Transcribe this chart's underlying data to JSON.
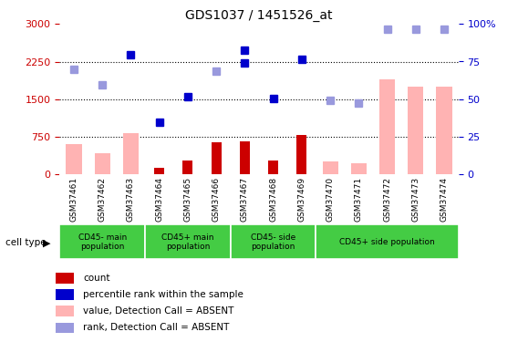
{
  "title": "GDS1037 / 1451526_at",
  "samples": [
    "GSM37461",
    "GSM37462",
    "GSM37463",
    "GSM37464",
    "GSM37465",
    "GSM37466",
    "GSM37467",
    "GSM37468",
    "GSM37469",
    "GSM37470",
    "GSM37471",
    "GSM37472",
    "GSM37473",
    "GSM37474"
  ],
  "count_red": [
    null,
    null,
    null,
    130,
    270,
    640,
    660,
    270,
    780,
    null,
    null,
    null,
    null,
    null
  ],
  "count_pink": [
    600,
    420,
    820,
    null,
    null,
    null,
    null,
    null,
    null,
    260,
    220,
    1900,
    1750,
    1750
  ],
  "rank_blue": [
    null,
    null,
    null,
    1050,
    1550,
    null,
    2230,
    1520,
    null,
    null,
    null,
    null,
    null,
    null
  ],
  "rank_lightblue": [
    2090,
    1790,
    null,
    null,
    null,
    2060,
    null,
    null,
    null,
    1480,
    1430,
    null,
    null,
    null
  ],
  "percentile_blue": [
    null,
    null,
    2380,
    null,
    null,
    null,
    2470,
    null,
    2300,
    null,
    null,
    null,
    null,
    null
  ],
  "percentile_lightblue": [
    null,
    null,
    null,
    null,
    null,
    null,
    null,
    null,
    null,
    null,
    null,
    2900,
    2900,
    2900
  ],
  "ylim_left": [
    0,
    3000
  ],
  "ylim_right": [
    0,
    100
  ],
  "yticks_left": [
    0,
    750,
    1500,
    2250,
    3000
  ],
  "yticks_right": [
    0,
    25,
    50,
    75,
    100
  ],
  "group_defs": [
    {
      "label": "CD45- main\npopulation",
      "start": 0,
      "end": 3
    },
    {
      "label": "CD45+ main\npopulation",
      "start": 3,
      "end": 6
    },
    {
      "label": "CD45- side\npopulation",
      "start": 6,
      "end": 9
    },
    {
      "label": "CD45+ side population",
      "start": 9,
      "end": 14
    }
  ],
  "colors": {
    "red": "#cc0000",
    "pink": "#ffb3b3",
    "blue": "#0000cc",
    "lightblue": "#9999dd",
    "left_axis": "#cc0000",
    "right_axis": "#0000cc",
    "group_bg": "#44cc44",
    "xtick_bg": "#cccccc"
  },
  "legend": [
    {
      "color": "#cc0000",
      "label": "count"
    },
    {
      "color": "#0000cc",
      "label": "percentile rank within the sample"
    },
    {
      "color": "#ffb3b3",
      "label": "value, Detection Call = ABSENT"
    },
    {
      "color": "#9999dd",
      "label": "rank, Detection Call = ABSENT"
    }
  ]
}
